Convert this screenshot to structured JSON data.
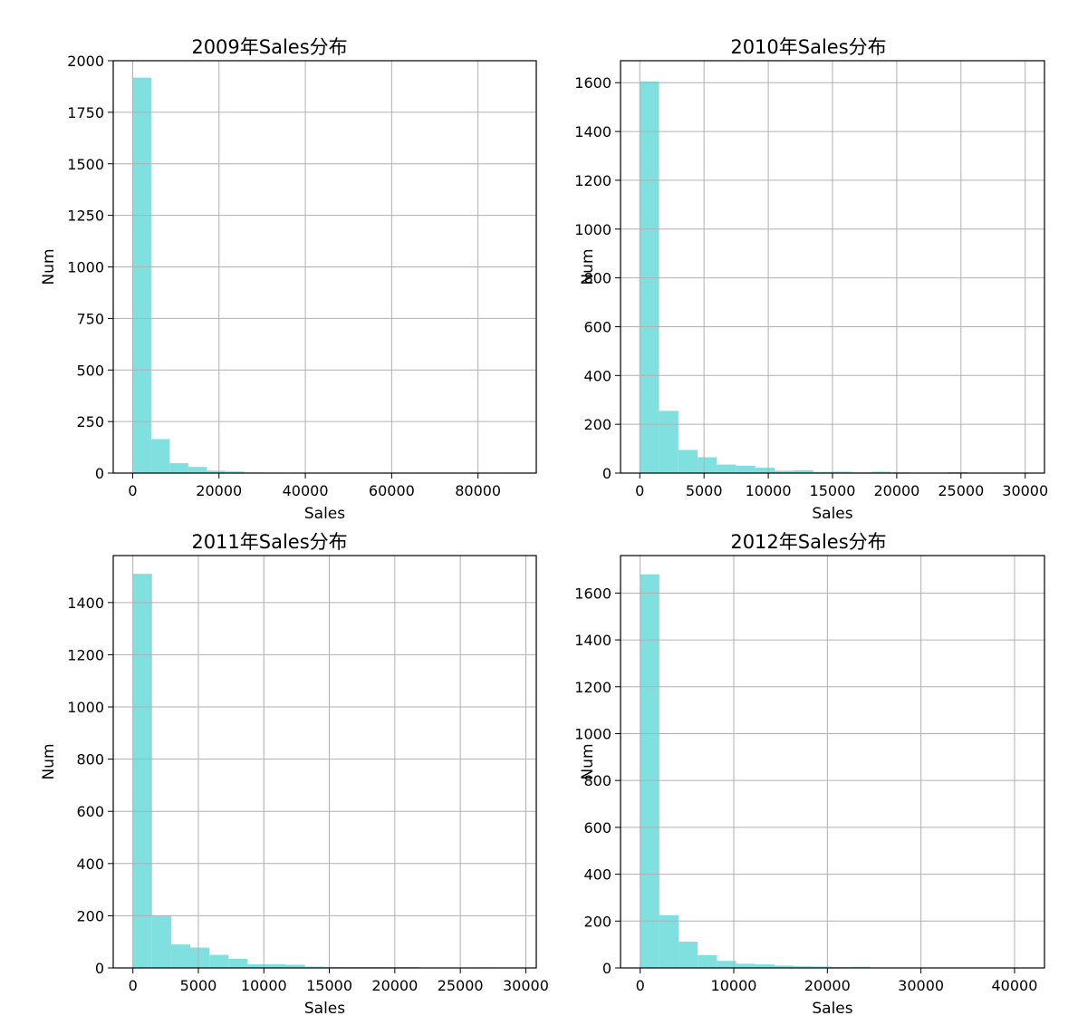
{
  "colors": {
    "bar": "#80e0df",
    "grid": "#b0b0b0",
    "axis": "#000000"
  },
  "chart_data": [
    {
      "type": "bar",
      "title": "2009年Sales分布",
      "xlabel": "Sales",
      "ylabel": "Num",
      "grid": true,
      "xlim": [
        -4500,
        93500
      ],
      "ylim": [
        0,
        2000
      ],
      "xticks": [
        0,
        20000,
        40000,
        60000,
        80000
      ],
      "yticks": [
        0,
        250,
        500,
        750,
        1000,
        1250,
        1500,
        1750,
        2000
      ],
      "bins": [
        [
          0,
          4300,
          1918
        ],
        [
          4300,
          8600,
          165
        ],
        [
          8600,
          12900,
          48
        ],
        [
          12900,
          17200,
          30
        ],
        [
          17200,
          21500,
          12
        ],
        [
          21500,
          25800,
          8
        ],
        [
          25800,
          30100,
          3
        ],
        [
          30100,
          34400,
          2
        ],
        [
          34400,
          38700,
          1
        ],
        [
          38700,
          43000,
          1
        ],
        [
          43000,
          47300,
          1
        ],
        [
          47300,
          51600,
          0
        ],
        [
          51600,
          55900,
          0
        ],
        [
          55900,
          60200,
          1
        ],
        [
          60200,
          64500,
          0
        ],
        [
          64500,
          68800,
          0
        ],
        [
          68800,
          73100,
          0
        ],
        [
          73100,
          77400,
          0
        ],
        [
          77400,
          81700,
          0
        ],
        [
          81700,
          86000,
          1
        ]
      ]
    },
    {
      "type": "bar",
      "title": "2010年Sales分布",
      "xlabel": "Sales",
      "ylabel": "Num",
      "grid": true,
      "xlim": [
        -1500,
        31500
      ],
      "ylim": [
        0,
        1690
      ],
      "xticks": [
        0,
        5000,
        10000,
        15000,
        20000,
        25000,
        30000
      ],
      "yticks": [
        0,
        200,
        400,
        600,
        800,
        1000,
        1200,
        1400,
        1600
      ],
      "bins": [
        [
          0,
          1500,
          1605
        ],
        [
          1500,
          3000,
          255
        ],
        [
          3000,
          4500,
          95
        ],
        [
          4500,
          6000,
          65
        ],
        [
          6000,
          7500,
          35
        ],
        [
          7500,
          9000,
          30
        ],
        [
          9000,
          10500,
          22
        ],
        [
          10500,
          12000,
          10
        ],
        [
          12000,
          13500,
          12
        ],
        [
          13500,
          15000,
          5
        ],
        [
          15000,
          16500,
          6
        ],
        [
          16500,
          18000,
          3
        ],
        [
          18000,
          19500,
          6
        ],
        [
          19500,
          21000,
          3
        ],
        [
          21000,
          22500,
          2
        ],
        [
          22500,
          24000,
          2
        ],
        [
          24000,
          25500,
          4
        ],
        [
          25500,
          27000,
          1
        ],
        [
          27000,
          28500,
          1
        ],
        [
          28500,
          30000,
          1
        ]
      ]
    },
    {
      "type": "bar",
      "title": "2011年Sales分布",
      "xlabel": "Sales",
      "ylabel": "Num",
      "grid": true,
      "xlim": [
        -1500,
        30800
      ],
      "ylim": [
        0,
        1580
      ],
      "xticks": [
        0,
        5000,
        10000,
        15000,
        20000,
        25000,
        30000
      ],
      "yticks": [
        0,
        200,
        400,
        600,
        800,
        1000,
        1200,
        1400
      ],
      "bins": [
        [
          0,
          1460,
          1510
        ],
        [
          1460,
          2920,
          200
        ],
        [
          2920,
          4380,
          90
        ],
        [
          4380,
          5840,
          78
        ],
        [
          5840,
          7300,
          50
        ],
        [
          7300,
          8760,
          35
        ],
        [
          8760,
          10220,
          14
        ],
        [
          10220,
          11680,
          14
        ],
        [
          11680,
          13140,
          12
        ],
        [
          13140,
          14600,
          5
        ],
        [
          14600,
          16060,
          4
        ],
        [
          16060,
          17520,
          3
        ],
        [
          17520,
          18980,
          3
        ],
        [
          18980,
          20440,
          3
        ],
        [
          20440,
          21900,
          3
        ],
        [
          21900,
          23360,
          1
        ],
        [
          23360,
          24820,
          1
        ],
        [
          24820,
          26280,
          1
        ],
        [
          26280,
          27740,
          2
        ],
        [
          27740,
          29200,
          1
        ]
      ]
    },
    {
      "type": "bar",
      "title": "2012年Sales分布",
      "xlabel": "Sales",
      "ylabel": "Num",
      "grid": true,
      "xlim": [
        -2100,
        43200
      ],
      "ylim": [
        0,
        1760
      ],
      "xticks": [
        0,
        10000,
        20000,
        30000,
        40000
      ],
      "yticks": [
        0,
        200,
        400,
        600,
        800,
        1000,
        1200,
        1400,
        1600
      ],
      "bins": [
        [
          0,
          2050,
          1680
        ],
        [
          2050,
          4100,
          225
        ],
        [
          4100,
          6150,
          112
        ],
        [
          6150,
          8200,
          55
        ],
        [
          8200,
          10250,
          30
        ],
        [
          10250,
          12300,
          18
        ],
        [
          12300,
          14350,
          15
        ],
        [
          14350,
          16400,
          10
        ],
        [
          16400,
          18450,
          7
        ],
        [
          18450,
          20500,
          6
        ],
        [
          20500,
          22550,
          4
        ],
        [
          22550,
          24600,
          5
        ],
        [
          24600,
          26650,
          2
        ],
        [
          26650,
          28700,
          2
        ],
        [
          28700,
          30750,
          1
        ],
        [
          30750,
          32800,
          1
        ],
        [
          32800,
          34850,
          1
        ],
        [
          34850,
          36900,
          0
        ],
        [
          36900,
          38950,
          1
        ],
        [
          38950,
          41000,
          1
        ]
      ]
    }
  ]
}
